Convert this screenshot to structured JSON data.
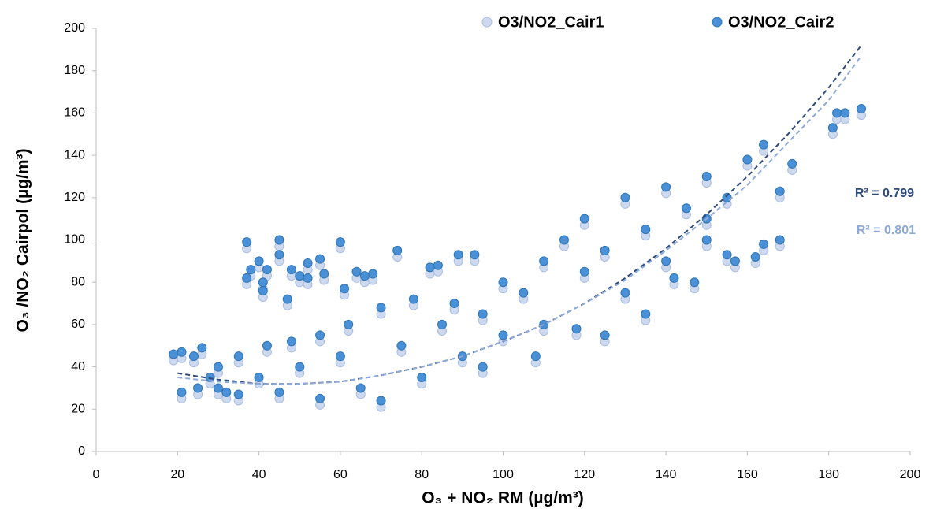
{
  "chart_data": {
    "type": "scatter",
    "x_label": "O₃ + NO₂ RM (µg/m³)",
    "y_label": "O₃ /NO₂ Cairpol (µg/m³)",
    "xlim": [
      0,
      200
    ],
    "ylim": [
      0,
      200
    ],
    "xticks": [
      0,
      20,
      40,
      60,
      80,
      100,
      120,
      140,
      160,
      180,
      200
    ],
    "yticks": [
      0,
      20,
      40,
      60,
      80,
      100,
      120,
      140,
      160,
      180,
      200
    ],
    "grid": false,
    "legend": "top",
    "series": [
      {
        "name": "O3/NO2_Cair1",
        "color": "#cdd9ee",
        "edge": "#a9bde3",
        "x": [
          19,
          21,
          24,
          26,
          21,
          25,
          28,
          30,
          32,
          35,
          37,
          38,
          37,
          40,
          41,
          41,
          42,
          45,
          45,
          47,
          48,
          50,
          52,
          52,
          55,
          56,
          60,
          61,
          64,
          66,
          68,
          74,
          82,
          84,
          89,
          93,
          30,
          35,
          40,
          45,
          50,
          55,
          60,
          65,
          70,
          75,
          80,
          85,
          90,
          95,
          100,
          100,
          105,
          110,
          110,
          115,
          120,
          120,
          125,
          130,
          130,
          135,
          140,
          140,
          145,
          150,
          150,
          155,
          155,
          157,
          160,
          162,
          164,
          164,
          168,
          168,
          171,
          181,
          182,
          184,
          188,
          42,
          48,
          55,
          62,
          70,
          78,
          88,
          95,
          108,
          118,
          125,
          135,
          142,
          147,
          150
        ],
        "values": [
          43,
          44,
          42,
          46,
          25,
          27,
          32,
          37,
          25,
          42,
          96,
          83,
          79,
          87,
          77,
          73,
          83,
          97,
          90,
          69,
          83,
          80,
          86,
          79,
          88,
          81,
          96,
          74,
          82,
          80,
          81,
          92,
          84,
          85,
          90,
          90,
          27,
          24,
          32,
          25,
          37,
          22,
          42,
          27,
          21,
          47,
          32,
          57,
          42,
          62,
          52,
          77,
          72,
          87,
          57,
          97,
          82,
          107,
          92,
          117,
          72,
          102,
          122,
          87,
          112,
          127,
          97,
          117,
          90,
          87,
          135,
          89,
          142,
          95,
          97,
          120,
          133,
          150,
          157,
          157,
          159,
          47,
          49,
          52,
          57,
          65,
          69,
          67,
          37,
          42,
          55,
          52,
          62,
          79,
          77,
          107
        ]
      },
      {
        "name": "O3/NO2_Cair2",
        "color": "#4a90d6",
        "edge": "#2e75b6",
        "x": [
          19,
          21,
          24,
          26,
          21,
          25,
          28,
          30,
          32,
          35,
          37,
          38,
          37,
          40,
          41,
          41,
          42,
          45,
          45,
          47,
          48,
          50,
          52,
          52,
          55,
          56,
          60,
          61,
          64,
          66,
          68,
          74,
          82,
          84,
          89,
          93,
          30,
          35,
          40,
          45,
          50,
          55,
          60,
          65,
          70,
          75,
          80,
          85,
          90,
          95,
          100,
          100,
          105,
          110,
          110,
          115,
          120,
          120,
          125,
          130,
          130,
          135,
          140,
          140,
          145,
          150,
          150,
          155,
          155,
          157,
          160,
          162,
          164,
          164,
          168,
          168,
          171,
          181,
          182,
          184,
          188,
          42,
          48,
          55,
          62,
          70,
          78,
          88,
          95,
          108,
          118,
          125,
          135,
          142,
          147,
          150
        ],
        "values": [
          46,
          47,
          45,
          49,
          28,
          30,
          35,
          40,
          28,
          45,
          99,
          86,
          82,
          90,
          80,
          76,
          86,
          100,
          93,
          72,
          86,
          83,
          89,
          82,
          91,
          84,
          99,
          77,
          85,
          83,
          84,
          95,
          87,
          88,
          93,
          93,
          30,
          27,
          35,
          28,
          40,
          25,
          45,
          30,
          24,
          50,
          35,
          60,
          45,
          65,
          55,
          80,
          75,
          90,
          60,
          100,
          85,
          110,
          95,
          120,
          75,
          105,
          125,
          90,
          115,
          130,
          100,
          120,
          93,
          90,
          138,
          92,
          145,
          98,
          100,
          123,
          136,
          153,
          160,
          160,
          162,
          50,
          52,
          55,
          60,
          68,
          72,
          70,
          40,
          45,
          58,
          55,
          65,
          82,
          80,
          110
        ]
      }
    ],
    "trendlines": [
      {
        "label": "R² = 0.799",
        "color": "#2f4b7c",
        "x": [
          20,
          30,
          40,
          50,
          60,
          70,
          80,
          90,
          100,
          110,
          120,
          130,
          140,
          150,
          160,
          170,
          180,
          188
        ],
        "values": [
          37,
          34,
          32,
          32,
          33,
          36,
          40,
          45,
          52,
          60,
          70,
          82,
          96,
          112,
          130,
          150,
          172,
          192
        ]
      },
      {
        "label": "R² = 0.801",
        "color": "#8eaadb",
        "x": [
          20,
          30,
          40,
          50,
          60,
          70,
          80,
          90,
          100,
          110,
          120,
          130,
          140,
          150,
          160,
          170,
          180,
          188
        ],
        "values": [
          35,
          33,
          32,
          32,
          33,
          36,
          40,
          45,
          52,
          60,
          70,
          81,
          95,
          110,
          126,
          146,
          166,
          187
        ]
      }
    ]
  }
}
